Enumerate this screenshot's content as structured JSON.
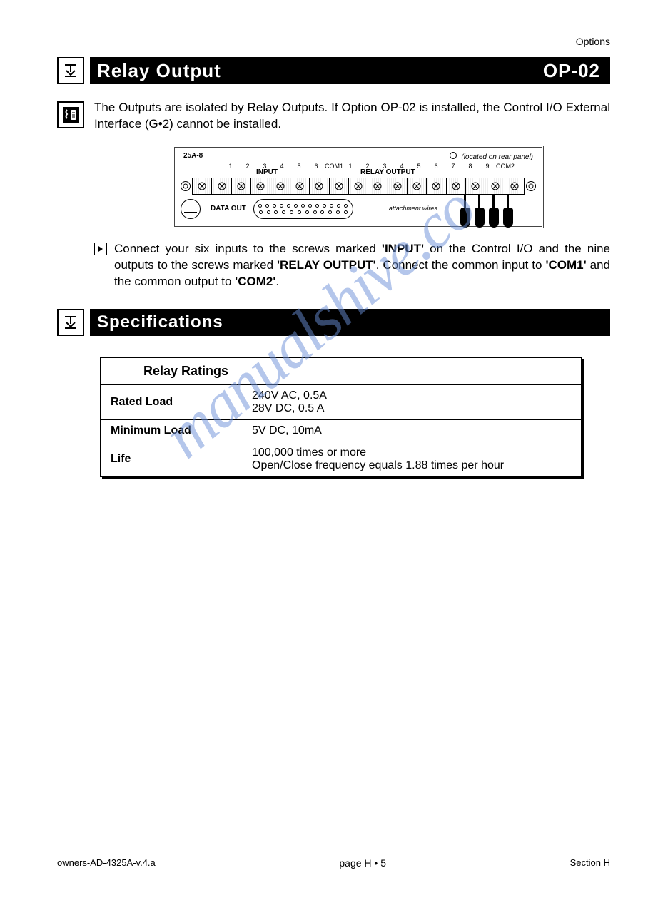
{
  "top_label": "Options",
  "header": {
    "title": "Relay  Output",
    "code": "OP-02"
  },
  "intro": "The Outputs are isolated by Relay Outputs.  If Option OP-02 is installed, the Control I/O External Interface (G•2) cannot be installed.",
  "diagram": {
    "model": "25A-8",
    "located": "(located on rear panel)",
    "input_nums": [
      "1",
      "2",
      "3",
      "4",
      "5",
      "6",
      "COM1"
    ],
    "relay_nums": [
      "1",
      "2",
      "3",
      "4",
      "5",
      "6",
      "7",
      "8",
      "9",
      "COM2"
    ],
    "input_label": "INPUT",
    "relay_label": "RELAY OUTPUT",
    "dataout": "DATA OUT",
    "attach": "attachment wires",
    "terminal_count": 17
  },
  "instruction": {
    "pre": "Connect your six inputs to the screws marked ",
    "b1": "'INPUT'",
    "mid1": " on the Control I/O and the nine outputs to the screws marked ",
    "b2": "'RELAY OUTPUT'",
    "mid2": ".  Connect the common input to ",
    "b3": "'COM1'",
    "mid3": " and the common output to ",
    "b4": "'COM2'",
    "post": "."
  },
  "sub_header": "Specifications",
  "table": {
    "title": "Relay Ratings",
    "rows": [
      {
        "label": "Rated Load",
        "value": "240V AC, 0.5A\n28V DC, 0.5 A"
      },
      {
        "label": "Minimum Load",
        "value": "5V DC, 10mA"
      },
      {
        "label": "Life",
        "value": "100,000 times or more\nOpen/Close frequency equals 1.88 times per hour"
      }
    ],
    "colors": {
      "border": "#000000",
      "shadow": "#000000",
      "bg": "#ffffff"
    }
  },
  "watermark": "manualshive.co",
  "footer": {
    "left": "owners-AD-4325A-v.4.a",
    "center": "page H • 5",
    "right": "Section H"
  }
}
